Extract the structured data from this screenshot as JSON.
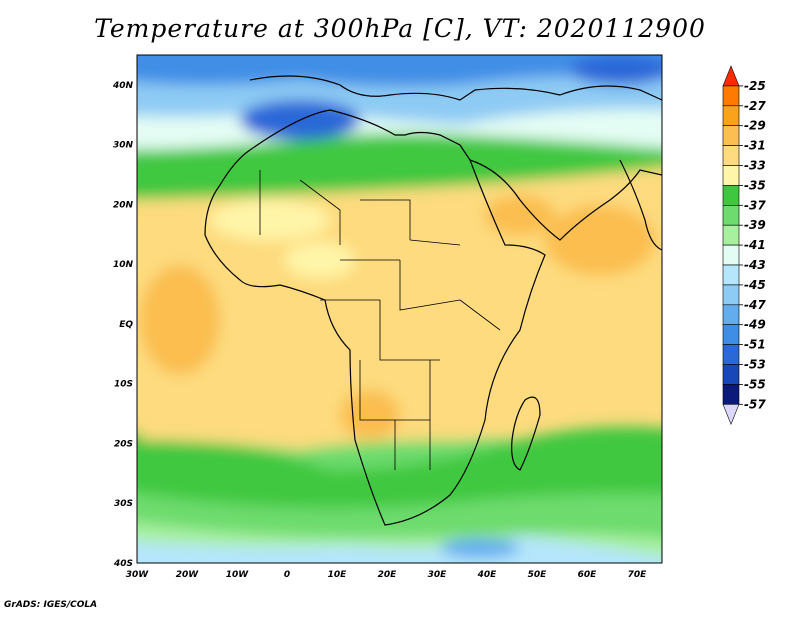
{
  "title": "Temperature at 300hPa [C], VT: 2020112900",
  "footer": "GrADS: IGES/COLA",
  "map": {
    "lon_labels": [
      "30W",
      "20W",
      "10W",
      "0",
      "10E",
      "20E",
      "30E",
      "40E",
      "50E",
      "60E",
      "70E"
    ],
    "lat_labels": [
      "40N",
      "30N",
      "20N",
      "10N",
      "EQ",
      "10S",
      "20S",
      "30S",
      "40S"
    ],
    "lon_range": [
      -30,
      75
    ],
    "lat_range": [
      -40,
      45
    ]
  },
  "colorbar": {
    "labels": [
      "-25",
      "-27",
      "-29",
      "-31",
      "-33",
      "-35",
      "-37",
      "-39",
      "-41",
      "-43",
      "-45",
      "-47",
      "-49",
      "-51",
      "-53",
      "-55",
      "-57"
    ],
    "colors": [
      "#ff2a00",
      "#ff7a00",
      "#f9a31a",
      "#fbbe50",
      "#fddb7e",
      "#fff5a8",
      "#3fc83f",
      "#6ddb6d",
      "#a8f0a0",
      "#e4fdf4",
      "#b5e6fb",
      "#8ecbf4",
      "#62adee",
      "#3f8ee6",
      "#2a68d8",
      "#1747b8",
      "#0b1a7a",
      "#dcd8fb"
    ]
  }
}
